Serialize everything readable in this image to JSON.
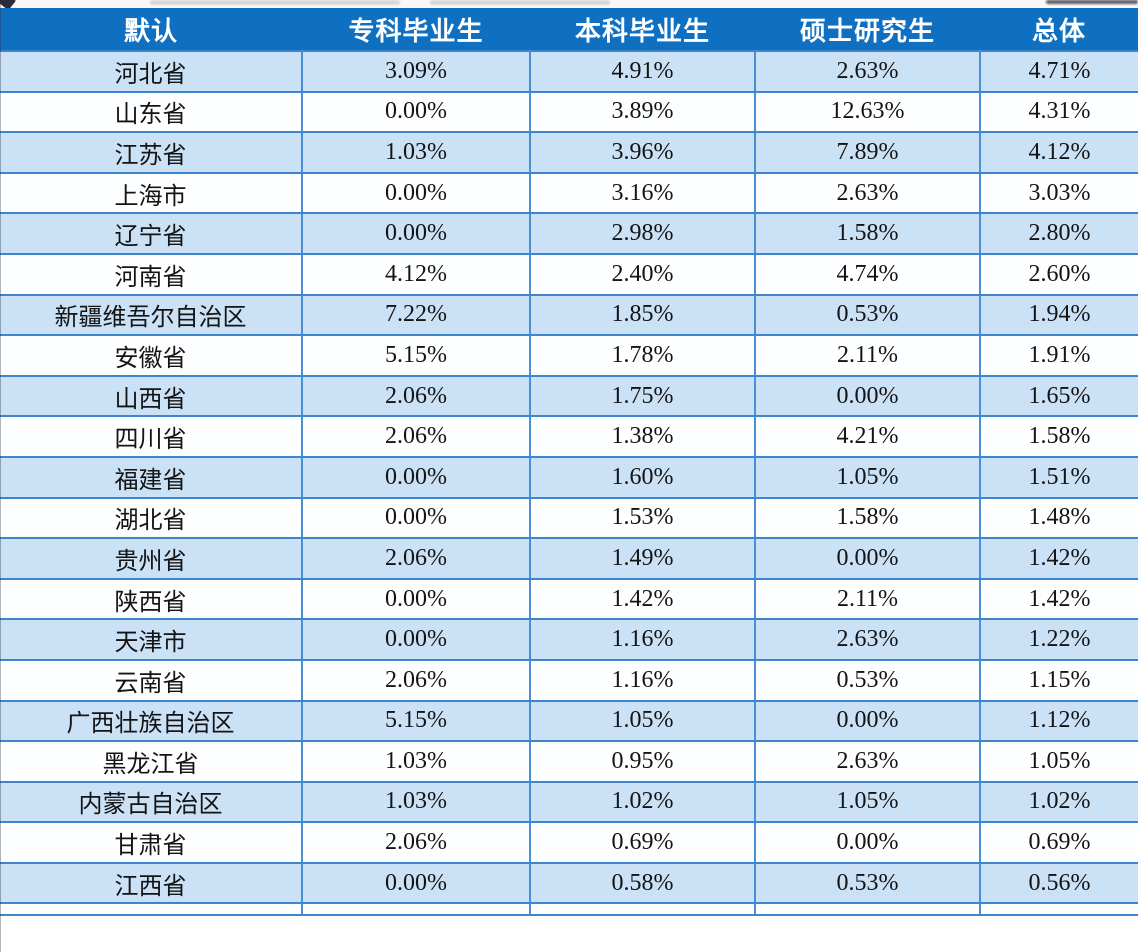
{
  "table": {
    "columns": [
      "默认",
      "专科毕业生",
      "本科毕业生",
      "硕士研究生",
      "总体"
    ],
    "rows": [
      {
        "province": "河北省",
        "values": [
          "3.09%",
          "4.91%",
          "2.63%",
          "4.71%"
        ]
      },
      {
        "province": "山东省",
        "values": [
          "0.00%",
          "3.89%",
          "12.63%",
          "4.31%"
        ]
      },
      {
        "province": "江苏省",
        "values": [
          "1.03%",
          "3.96%",
          "7.89%",
          "4.12%"
        ]
      },
      {
        "province": "上海市",
        "values": [
          "0.00%",
          "3.16%",
          "2.63%",
          "3.03%"
        ]
      },
      {
        "province": "辽宁省",
        "values": [
          "0.00%",
          "2.98%",
          "1.58%",
          "2.80%"
        ]
      },
      {
        "province": "河南省",
        "values": [
          "4.12%",
          "2.40%",
          "4.74%",
          "2.60%"
        ]
      },
      {
        "province": "新疆维吾尔自治区",
        "values": [
          "7.22%",
          "1.85%",
          "0.53%",
          "1.94%"
        ]
      },
      {
        "province": "安徽省",
        "values": [
          "5.15%",
          "1.78%",
          "2.11%",
          "1.91%"
        ]
      },
      {
        "province": "山西省",
        "values": [
          "2.06%",
          "1.75%",
          "0.00%",
          "1.65%"
        ]
      },
      {
        "province": "四川省",
        "values": [
          "2.06%",
          "1.38%",
          "4.21%",
          "1.58%"
        ]
      },
      {
        "province": "福建省",
        "values": [
          "0.00%",
          "1.60%",
          "1.05%",
          "1.51%"
        ]
      },
      {
        "province": "湖北省",
        "values": [
          "0.00%",
          "1.53%",
          "1.58%",
          "1.48%"
        ]
      },
      {
        "province": "贵州省",
        "values": [
          "2.06%",
          "1.49%",
          "0.00%",
          "1.42%"
        ]
      },
      {
        "province": "陕西省",
        "values": [
          "0.00%",
          "1.42%",
          "2.11%",
          "1.42%"
        ]
      },
      {
        "province": "天津市",
        "values": [
          "0.00%",
          "1.16%",
          "2.63%",
          "1.22%"
        ]
      },
      {
        "province": "云南省",
        "values": [
          "2.06%",
          "1.16%",
          "0.53%",
          "1.15%"
        ]
      },
      {
        "province": "广西壮族自治区",
        "values": [
          "5.15%",
          "1.05%",
          "0.00%",
          "1.12%"
        ]
      },
      {
        "province": "黑龙江省",
        "values": [
          "1.03%",
          "0.95%",
          "2.63%",
          "1.05%"
        ]
      },
      {
        "province": "内蒙古自治区",
        "values": [
          "1.03%",
          "1.02%",
          "1.05%",
          "1.02%"
        ]
      },
      {
        "province": "甘肃省",
        "values": [
          "2.06%",
          "0.69%",
          "0.00%",
          "0.69%"
        ]
      },
      {
        "province": "江西省",
        "values": [
          "0.00%",
          "0.58%",
          "0.53%",
          "0.56%"
        ]
      }
    ]
  },
  "colors": {
    "header_bg": "#0f70c2",
    "header_text": "#ffffff",
    "row_alt_bg": "#cae1f6",
    "row_plain_bg": "#fdfeff",
    "cell_border": "#4a8fd4",
    "body_text": "#141414"
  }
}
